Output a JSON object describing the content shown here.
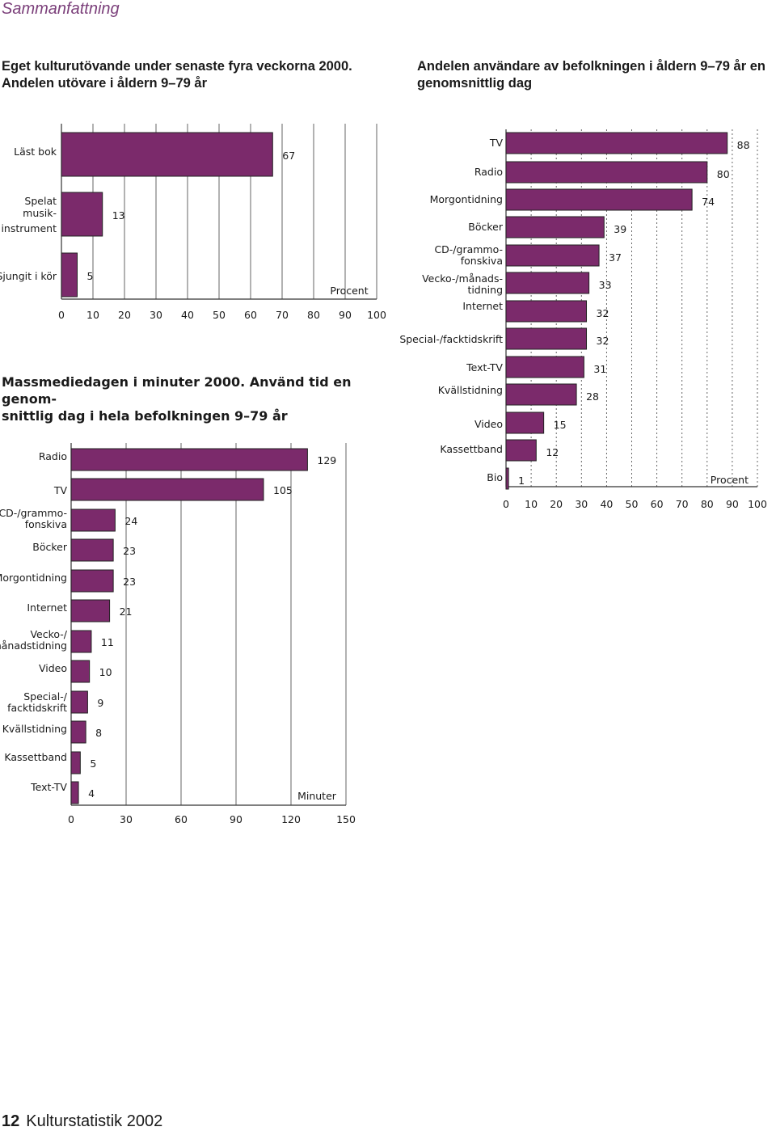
{
  "section_title": "Sammanfattning",
  "footer": {
    "page_number": "12",
    "publication": "Kulturstatistik 2002"
  },
  "colors": {
    "bar": "#7b2a6b",
    "grid": "#555555"
  },
  "chart_data": [
    {
      "id": "chart1",
      "type": "bar",
      "orientation": "horizontal",
      "title": "Eget kulturutövande under senaste fyra veckorna 2000. Andelen utövare i åldern 9–79 år",
      "title_lines": [
        "Eget kulturutövande under senaste fyra veckorna 2000.",
        "Andelen utövare i åldern 9–79 år"
      ],
      "unit_label": "Procent",
      "xlim": [
        0,
        100
      ],
      "ticks": [
        "0",
        "10",
        "20",
        "30",
        "40",
        "50",
        "60",
        "70",
        "80",
        "90",
        "100"
      ],
      "grid": true,
      "categories": [
        {
          "label_lines": [
            "Läst bok"
          ],
          "value": 67,
          "value_label": "67"
        },
        {
          "label_lines": [
            "Spelat",
            "musik-",
            "instrument"
          ],
          "value": 13,
          "value_label": "13"
        },
        {
          "label_lines": [
            "Sjungit i kör"
          ],
          "value": 5,
          "value_label": "5"
        }
      ]
    },
    {
      "id": "chart2",
      "type": "bar",
      "orientation": "horizontal",
      "title": "Andelen användare av befolkningen i åldern 9–79 år en genomsnittlig dag",
      "title_lines": [
        "Andelen användare av befolkningen i åldern 9–79 år en",
        "genomsnittlig dag"
      ],
      "unit_label": "Procent",
      "xlim": [
        0,
        100
      ],
      "ticks": [
        "0",
        "10",
        "20",
        "30",
        "40",
        "50",
        "60",
        "70",
        "80",
        "90",
        "100"
      ],
      "grid": true,
      "categories": [
        {
          "label_lines": [
            "TV"
          ],
          "value": 88,
          "value_label": "88"
        },
        {
          "label_lines": [
            "Radio"
          ],
          "value": 80,
          "value_label": "80"
        },
        {
          "label_lines": [
            "Morgontidning"
          ],
          "value": 74,
          "value_label": "74"
        },
        {
          "label_lines": [
            "Böcker"
          ],
          "value": 39,
          "value_label": "39"
        },
        {
          "label_lines": [
            "CD-/grammo-",
            "fonskiva"
          ],
          "value": 37,
          "value_label": "37"
        },
        {
          "label_lines": [
            "Vecko-/månads-",
            "tidning"
          ],
          "value": 33,
          "value_label": "33"
        },
        {
          "label_lines": [
            "Internet"
          ],
          "value": 32,
          "value_label": "32"
        },
        {
          "label_lines": [
            "Special-/facktidskrift"
          ],
          "value": 32,
          "value_label": "32"
        },
        {
          "label_lines": [
            "Text-TV"
          ],
          "value": 31,
          "value_label": "31"
        },
        {
          "label_lines": [
            "Kvällstidning"
          ],
          "value": 28,
          "value_label": "28"
        },
        {
          "label_lines": [
            "Video"
          ],
          "value": 15,
          "value_label": "15"
        },
        {
          "label_lines": [
            "Kassettband"
          ],
          "value": 12,
          "value_label": "12"
        },
        {
          "label_lines": [
            "Bio"
          ],
          "value": 1,
          "value_label": "1"
        }
      ]
    },
    {
      "id": "chart3",
      "type": "bar",
      "orientation": "horizontal",
      "title": "Massmediedagen i minuter 2000. Använd tid en genomsnittlig dag i hela befolkningen 9–79 år",
      "title_lines": [
        "Massmediedagen i minuter 2000. Använd tid en genom-",
        "snittlig dag i hela befolkningen 9–79 år"
      ],
      "unit_label": "Minuter",
      "xlim": [
        0,
        150
      ],
      "ticks": [
        "0",
        "30",
        "60",
        "90",
        "120",
        "150"
      ],
      "grid": true,
      "categories": [
        {
          "label_lines": [
            "Radio"
          ],
          "value": 129,
          "value_label": "129"
        },
        {
          "label_lines": [
            "TV"
          ],
          "value": 105,
          "value_label": "105"
        },
        {
          "label_lines": [
            "CD-/grammo-",
            "fonskiva"
          ],
          "value": 24,
          "value_label": "24"
        },
        {
          "label_lines": [
            "Böcker"
          ],
          "value": 23,
          "value_label": "23"
        },
        {
          "label_lines": [
            "Morgontidning"
          ],
          "value": 23,
          "value_label": "23"
        },
        {
          "label_lines": [
            "Internet"
          ],
          "value": 21,
          "value_label": "21"
        },
        {
          "label_lines": [
            "Vecko-/",
            "månadstidning"
          ],
          "value": 11,
          "value_label": "11"
        },
        {
          "label_lines": [
            "Video"
          ],
          "value": 10,
          "value_label": "10"
        },
        {
          "label_lines": [
            "Special-/",
            "facktidskrift"
          ],
          "value": 9,
          "value_label": "9"
        },
        {
          "label_lines": [
            "Kvällstidning"
          ],
          "value": 8,
          "value_label": "8"
        },
        {
          "label_lines": [
            "Kassettband"
          ],
          "value": 5,
          "value_label": "5"
        },
        {
          "label_lines": [
            "Text-TV"
          ],
          "value": 4,
          "value_label": "4"
        }
      ]
    }
  ]
}
